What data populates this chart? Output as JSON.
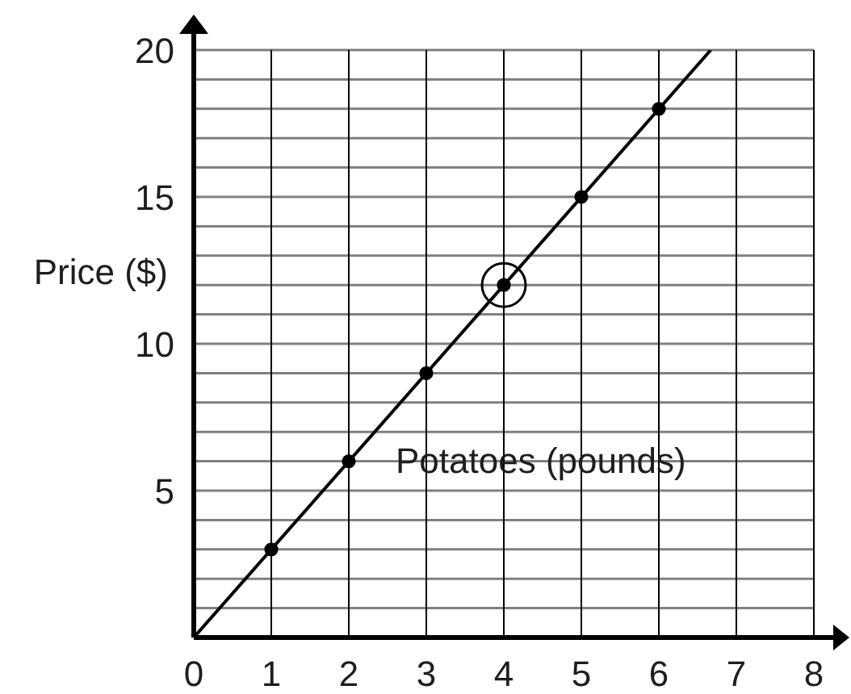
{
  "chart_data": {
    "type": "line",
    "xlabel": "Potatoes (pounds)",
    "ylabel": "Price ($)",
    "xlim": [
      0,
      8
    ],
    "ylim": [
      0,
      20
    ],
    "xticks": [
      0,
      1,
      2,
      3,
      4,
      5,
      6,
      7,
      8
    ],
    "yticks": [
      {
        "value": 1,
        "label": null
      },
      {
        "value": 2,
        "label": null
      },
      {
        "value": 3,
        "label": null
      },
      {
        "value": 4,
        "label": null
      },
      5,
      {
        "value": 6,
        "label": null
      },
      {
        "value": 7,
        "label": null
      },
      {
        "value": 8,
        "label": null
      },
      {
        "value": 9,
        "label": null
      },
      10,
      {
        "value": 11,
        "label": null
      },
      {
        "value": 12,
        "label": null
      },
      {
        "value": 13,
        "label": null
      },
      {
        "value": 14,
        "label": null
      },
      15,
      {
        "value": 16,
        "label": null
      },
      {
        "value": 17,
        "label": null
      },
      {
        "value": 18,
        "label": null
      },
      {
        "value": 19,
        "label": null
      },
      20
    ],
    "grid": true,
    "series": [
      {
        "color": "#000000",
        "marker": "none",
        "x": [
          0,
          6.67
        ],
        "values": [
          0,
          20
        ]
      },
      {
        "type": "scatter",
        "color": "#000000",
        "marker": "circle",
        "x": [
          1,
          2,
          3,
          4,
          5,
          6
        ],
        "values": [
          3,
          6,
          9,
          12,
          15,
          18
        ]
      },
      {
        "type": "bubble",
        "color": "#000000",
        "x": [
          4
        ],
        "values": [
          12
        ],
        "sizes": [
          1
        ]
      }
    ]
  }
}
